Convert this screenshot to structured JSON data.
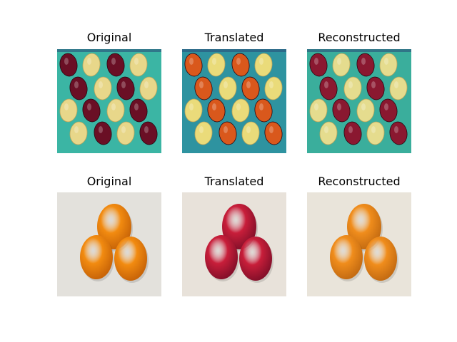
{
  "rows": [
    {
      "titles": [
        "Original",
        "Translated",
        "Reconstructed"
      ],
      "subject": "apples and mangoes on teal background",
      "variants": [
        {
          "bg": "#3bb5a4",
          "dark": "#6a0f25",
          "light": "#e8d78a"
        },
        {
          "bg": "#2e93a0",
          "dark": "#d9581c",
          "light": "#eadb7a"
        },
        {
          "bg": "#3aae9c",
          "dark": "#8a1830",
          "light": "#e5dc8e"
        }
      ]
    },
    {
      "titles": [
        "Original",
        "Translated",
        "Reconstructed"
      ],
      "subject": "three oranges / red apples on white background",
      "variants": [
        {
          "bg": "#e3e1dc",
          "fruit": "#f28b10",
          "fruitDark": "#c96508"
        },
        {
          "bg": "#e8e2da",
          "fruit": "#c81e3a",
          "fruitDark": "#86102a"
        },
        {
          "bg": "#e9e4da",
          "fruit": "#f08d1c",
          "fruitDark": "#c56c12"
        }
      ]
    }
  ]
}
